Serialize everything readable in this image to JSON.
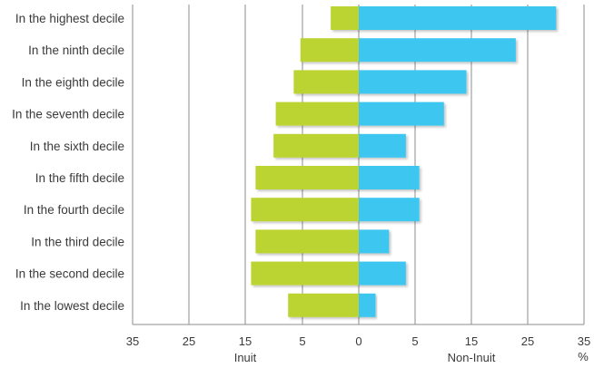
{
  "chart_data": {
    "type": "bar",
    "orientation": "horizontal",
    "layout": "back-to-back",
    "categories": [
      "In the highest decile",
      "In the ninth decile",
      "In the eighth decile",
      "In the seventh decile",
      "In the sixth decile",
      "In the fifth decile",
      "In the fourth decile",
      "In the third decile",
      "In the second decile",
      "In the lowest decile"
    ],
    "series": [
      {
        "name": "Inuit",
        "color": "#bcd430",
        "values": [
          2.5,
          5.2,
          5.8,
          7.4,
          7.6,
          9.2,
          9.6,
          9.2,
          9.6,
          6.3
        ]
      },
      {
        "name": "Non-Inuit",
        "color": "#3ec6ef",
        "values": [
          17.6,
          14.0,
          9.6,
          7.6,
          4.2,
          5.4,
          5.4,
          2.7,
          4.2,
          1.5
        ]
      }
    ],
    "x_ticks": [
      "35",
      "25",
      "15",
      "5",
      "0",
      "5",
      "15",
      "25",
      "35"
    ],
    "x_unit": "%",
    "xlim": [
      -20,
      20
    ],
    "grid": "vertical",
    "legend": "below axis, Inuit left of center, Non-Inuit right of center"
  }
}
